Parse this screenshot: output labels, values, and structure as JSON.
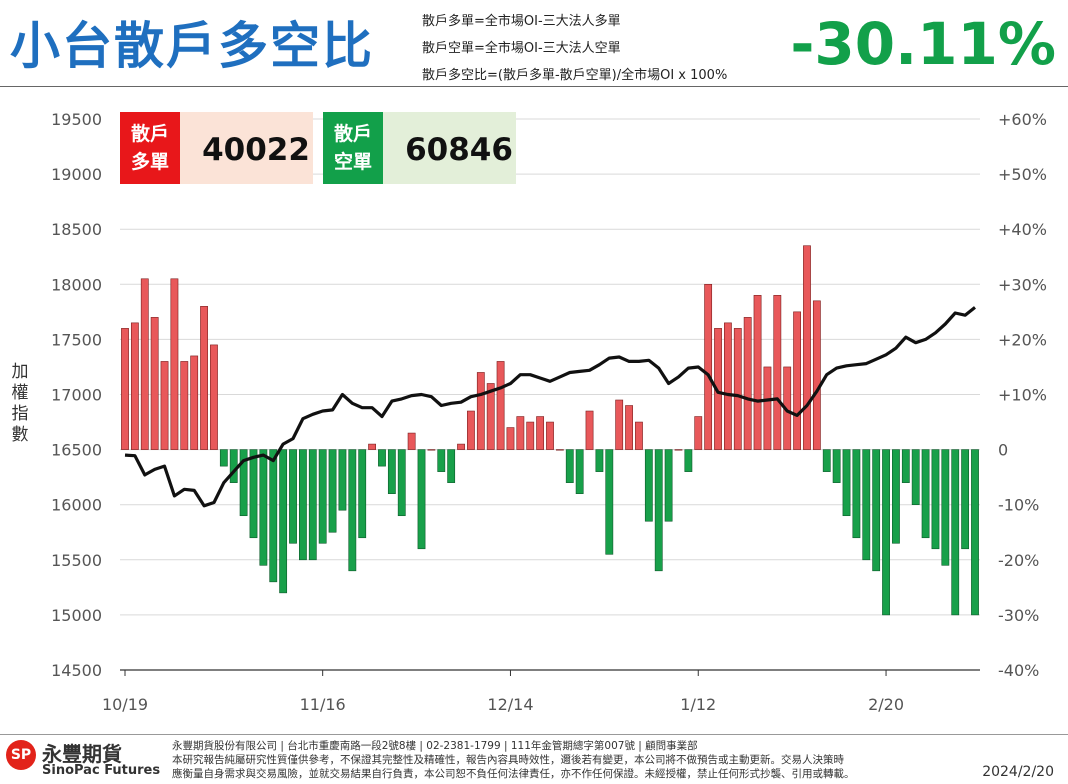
{
  "header": {
    "title": "小台散戶多空比",
    "formula_1": "散戶多單=全市場OI-三大法人多單",
    "formula_2": "散戶空單=全市場OI-三大法人空單",
    "formula_3": "散戶多空比=(散戶多單-散戶空單)/全市場OI x 100%",
    "current_ratio": "-30.11%",
    "ratio_color": "#12a04a"
  },
  "legend_boxes": {
    "long_label_1": "散戶",
    "long_label_2": "多單",
    "long_value": "40022",
    "short_label_1": "散戶",
    "short_label_2": "空單",
    "short_value": "60846",
    "long_color": "#e8171a",
    "short_color": "#12a04a"
  },
  "chart_data": {
    "type": "bar+line",
    "ylabel": "加權指數",
    "left_axis": {
      "min": 14500,
      "max": 19500,
      "ticks": [
        "19500",
        "19000",
        "18500",
        "18000",
        "17500",
        "17000",
        "16500",
        "16000",
        "15500",
        "15000",
        "14500"
      ]
    },
    "right_axis": {
      "min": -40,
      "max": 60,
      "ticks": [
        "+60%",
        "+50%",
        "+40%",
        "+30%",
        "+20%",
        "+10%",
        "0",
        "-10%",
        "-20%",
        "-30%",
        "-40%"
      ]
    },
    "x_ticks": [
      "10/19",
      "11/16",
      "12/14",
      "1/12",
      "2/20"
    ],
    "x_tick_index": [
      0,
      20,
      39,
      58,
      77
    ],
    "grid": true,
    "series": [
      {
        "kind": "bar",
        "axis": "right",
        "positive_color": "#e8585a",
        "negative_color": "#18a04a",
        "values": [
          22,
          23,
          31,
          24,
          16,
          31,
          16,
          17,
          26,
          19,
          -3,
          -6,
          -12,
          -16,
          -21,
          -24,
          -26,
          -17,
          -20,
          -20,
          -17,
          -15,
          -11,
          -22,
          -16,
          1,
          -3,
          -8,
          -12,
          3,
          -18,
          0,
          -4,
          -6,
          1,
          7,
          14,
          12,
          16,
          4,
          6,
          5,
          6,
          5,
          0,
          -6,
          -8,
          7,
          -4,
          -19,
          9,
          8,
          5,
          -13,
          -22,
          -13,
          0,
          -4,
          6,
          30,
          22,
          23,
          22,
          24,
          28,
          15,
          28,
          15,
          25,
          37,
          27,
          -4,
          -6,
          -12,
          -16,
          -20,
          -22,
          -30,
          -17,
          -6,
          -10,
          -16,
          -18,
          -21,
          -30,
          -18,
          -30
        ]
      },
      {
        "kind": "line",
        "axis": "left",
        "color": "#111111",
        "values": [
          16450,
          16445,
          16270,
          16320,
          16350,
          16080,
          16140,
          16130,
          15990,
          16020,
          16200,
          16300,
          16400,
          16430,
          16450,
          16400,
          16550,
          16600,
          16780,
          16820,
          16850,
          16860,
          17000,
          16920,
          16880,
          16880,
          16800,
          16940,
          16960,
          16990,
          17000,
          16980,
          16900,
          16920,
          16930,
          16980,
          17000,
          17030,
          17060,
          17100,
          17180,
          17180,
          17150,
          17120,
          17160,
          17200,
          17210,
          17220,
          17270,
          17330,
          17340,
          17300,
          17300,
          17310,
          17240,
          17100,
          17160,
          17240,
          17250,
          17180,
          17020,
          17000,
          16990,
          16960,
          16940,
          16950,
          16960,
          16850,
          16810,
          16900,
          17030,
          17180,
          17240,
          17260,
          17270,
          17280,
          17320,
          17360,
          17420,
          17520,
          17470,
          17500,
          17560,
          17640,
          17740,
          17720,
          17790
        ]
      }
    ]
  },
  "footer": {
    "logo_glyph": "SP",
    "company_zh": "永豐期貨",
    "company_en": "SinoPac Futures",
    "disclaimer_1": "永豐期貨股份有限公司 | 台北市重慶南路一段2號8樓 | 02-2381-1799 | 111年金管期總字第007號 | 顧問事業部",
    "disclaimer_2": "本研究報告純屬研究性質僅供參考，不保證其完整性及精確性，報告內容具時效性，邇後若有變更，本公司將不做預告或主動更新。交易人決策時",
    "disclaimer_3": "應衡量自身需求與交易風險，並就交易結果自行負責，本公司恕不負任何法律責任，亦不作任何保證。未經授權，禁止任何形式抄襲、引用或轉載。",
    "date": "2024/2/20"
  }
}
